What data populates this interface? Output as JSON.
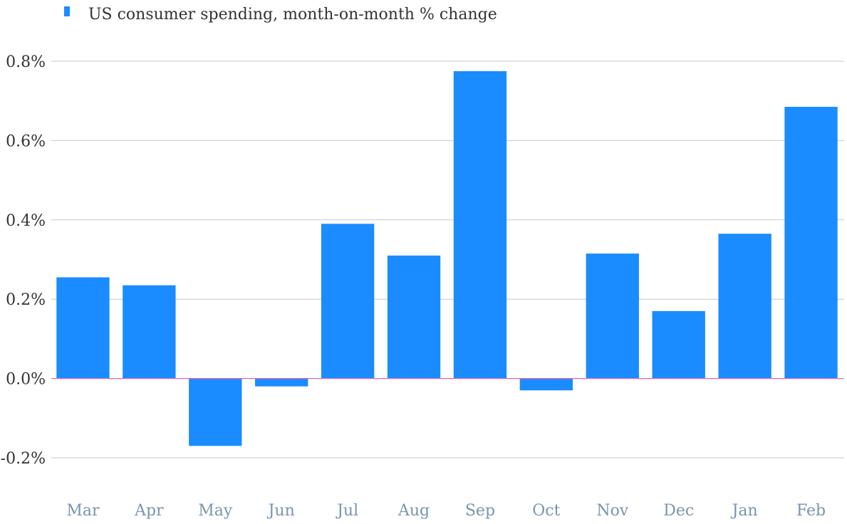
{
  "colors": {
    "bar": "#1a8cff",
    "grid": "#c8c8c8",
    "zero_line": "#d966c0",
    "axis_text": "#333333",
    "category_text": "#7a94b0"
  },
  "legend": {
    "label": "US consumer spending, month-on-month % change"
  },
  "chart_data": {
    "type": "bar",
    "title": "",
    "xlabel": "",
    "ylabel": "",
    "legend_position": "top-left",
    "grid": true,
    "ylim": [
      -0.2,
      0.8
    ],
    "yticks": [
      0.8,
      0.6,
      0.4,
      0.2,
      0.0,
      -0.2
    ],
    "ytick_labels": [
      "0.8%",
      "0.6%",
      "0.4%",
      "0.2%",
      "0.0%",
      "-0.2%"
    ],
    "categories": [
      "Mar",
      "Apr",
      "May",
      "Jun",
      "Jul",
      "Aug",
      "Sep",
      "Oct",
      "Nov",
      "Dec",
      "Jan",
      "Feb"
    ],
    "series": [
      {
        "name": "US consumer spending, month-on-month % change",
        "values": [
          0.255,
          0.235,
          -0.17,
          -0.02,
          0.39,
          0.31,
          0.775,
          -0.03,
          0.315,
          0.17,
          0.365,
          0.685
        ]
      }
    ]
  }
}
